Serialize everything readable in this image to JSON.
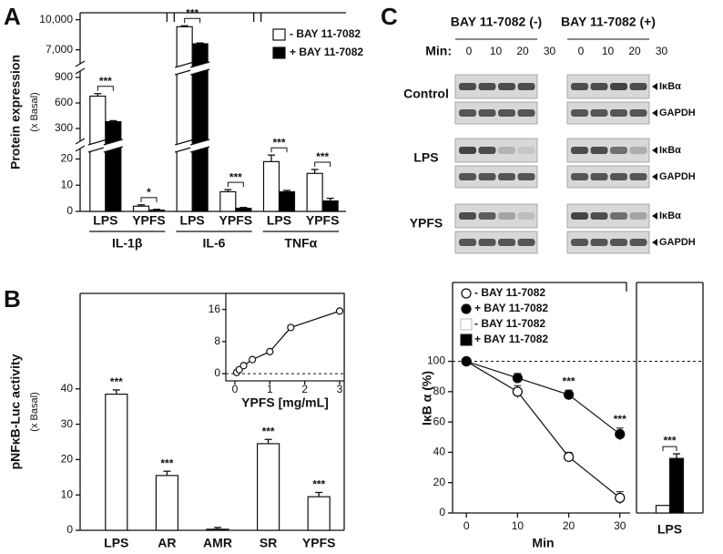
{
  "panels": [
    "A",
    "B",
    "C"
  ],
  "blot": {
    "headers": [
      "BAY 11-7082 (-)",
      "BAY 11-7082 (+)"
    ],
    "min_label": "Min:",
    "minutes": [
      "0",
      "10",
      "20",
      "30"
    ],
    "rows": [
      "Control",
      "LPS",
      "YPFS"
    ],
    "bands": [
      "IκBα",
      "GAPDH"
    ]
  },
  "chart_data": [
    {
      "type": "bar",
      "ylabel": "Protein expression",
      "ylabel_sub": "(x Basal)",
      "categories": [
        "LPS",
        "YPFS",
        "LPS",
        "YPFS",
        "LPS",
        "YPFS"
      ],
      "groups": [
        "IL-1β",
        "IL-6",
        "TNFα"
      ],
      "series": [
        {
          "name": "-  BAY 11-7082",
          "color": "#ffffff",
          "values": [
            680,
            2,
            9300,
            7.5,
            19,
            14.5
          ],
          "errors": [
            30,
            0.5,
            100,
            0.8,
            2.5,
            1.5
          ]
        },
        {
          "name": "+ BAY 11-7082",
          "color": "#000000",
          "values": [
            380,
            0.5,
            7600,
            1.2,
            7.5,
            4
          ],
          "errors": [
            12,
            0.3,
            80,
            0.3,
            0.5,
            1
          ]
        }
      ],
      "significance": [
        "***",
        "*",
        "***",
        "***",
        "***",
        "***"
      ],
      "y_segments": [
        {
          "ylim": [
            0,
            24
          ],
          "yticks": [
            0,
            10,
            20
          ]
        },
        {
          "ylim": [
            150,
            975
          ],
          "yticks": [
            300,
            600,
            900
          ]
        },
        {
          "ylim": [
            5600,
            10700
          ],
          "yticks": [
            {
              "value": 7000,
              "label": "7,000"
            },
            {
              "value": 10000,
              "label": "10,000"
            }
          ]
        }
      ],
      "legend": "upper right"
    },
    {
      "type": "bar",
      "ylabel": "pNFκB-Luc activity",
      "ylabel_sub": "(x Basal)",
      "categories": [
        "LPS",
        "AR",
        "AMR",
        "SR",
        "YPFS"
      ],
      "values": [
        38.5,
        15.5,
        0.3,
        24.5,
        9.5
      ],
      "errors": [
        1.2,
        1.2,
        0.5,
        1.2,
        1.2
      ],
      "color": "#ffffff",
      "significance": [
        "***",
        "***",
        null,
        "***",
        "***"
      ],
      "ylim": [
        0,
        67
      ],
      "yticks": [
        0,
        10,
        20,
        30,
        40
      ]
    },
    {
      "type": "scatter",
      "xlabel": "YPFS [mg/mL]",
      "x": [
        0.05,
        0.125,
        0.25,
        0.5,
        1,
        1.6,
        3
      ],
      "values": [
        0.3,
        1,
        2,
        3.5,
        5.5,
        11.5,
        15.6
      ],
      "errors": [
        0.3,
        0.5,
        0.6,
        0.8,
        0.9,
        0.8,
        0.8
      ],
      "color": "#ffffff",
      "xlim": [
        -0.26,
        3.13
      ],
      "ylim": [
        -1.8,
        20
      ],
      "xticks": [
        0,
        1,
        2,
        3
      ],
      "yticks": [
        0,
        8,
        16
      ],
      "reference_line": 0
    },
    {
      "type": "line",
      "ylabel": "IκB α (%)",
      "xlabel": "Min",
      "x": [
        0,
        10,
        20,
        30
      ],
      "series": [
        {
          "name": "- BAY 11-7082",
          "color": "#ffffff",
          "values": [
            100,
            80,
            37,
            10
          ],
          "errors": [
            0,
            4,
            3,
            4
          ]
        },
        {
          "name": "+ BAY 11-7082",
          "color": "#000000",
          "values": [
            100,
            89,
            78,
            52
          ],
          "errors": [
            0,
            3,
            3,
            4
          ],
          "significance": [
            null,
            null,
            "***",
            "***"
          ]
        }
      ],
      "bar_categories": [
        "LPS"
      ],
      "bar_series": [
        {
          "name": "- BAY 11-7082",
          "color": "#ffffff",
          "values": [
            5
          ]
        },
        {
          "name": "+ BAY 11-7082",
          "color": "#000000",
          "values": [
            36
          ],
          "errors": [
            3
          ]
        }
      ],
      "bar_significance": [
        "***"
      ],
      "xlim": [
        -2.7,
        32
      ],
      "ylim": [
        0,
        152
      ],
      "xticks": [
        0,
        10,
        20,
        30
      ],
      "yticks": [
        0,
        20,
        40,
        60,
        80,
        100
      ],
      "reference_line": 100
    }
  ]
}
